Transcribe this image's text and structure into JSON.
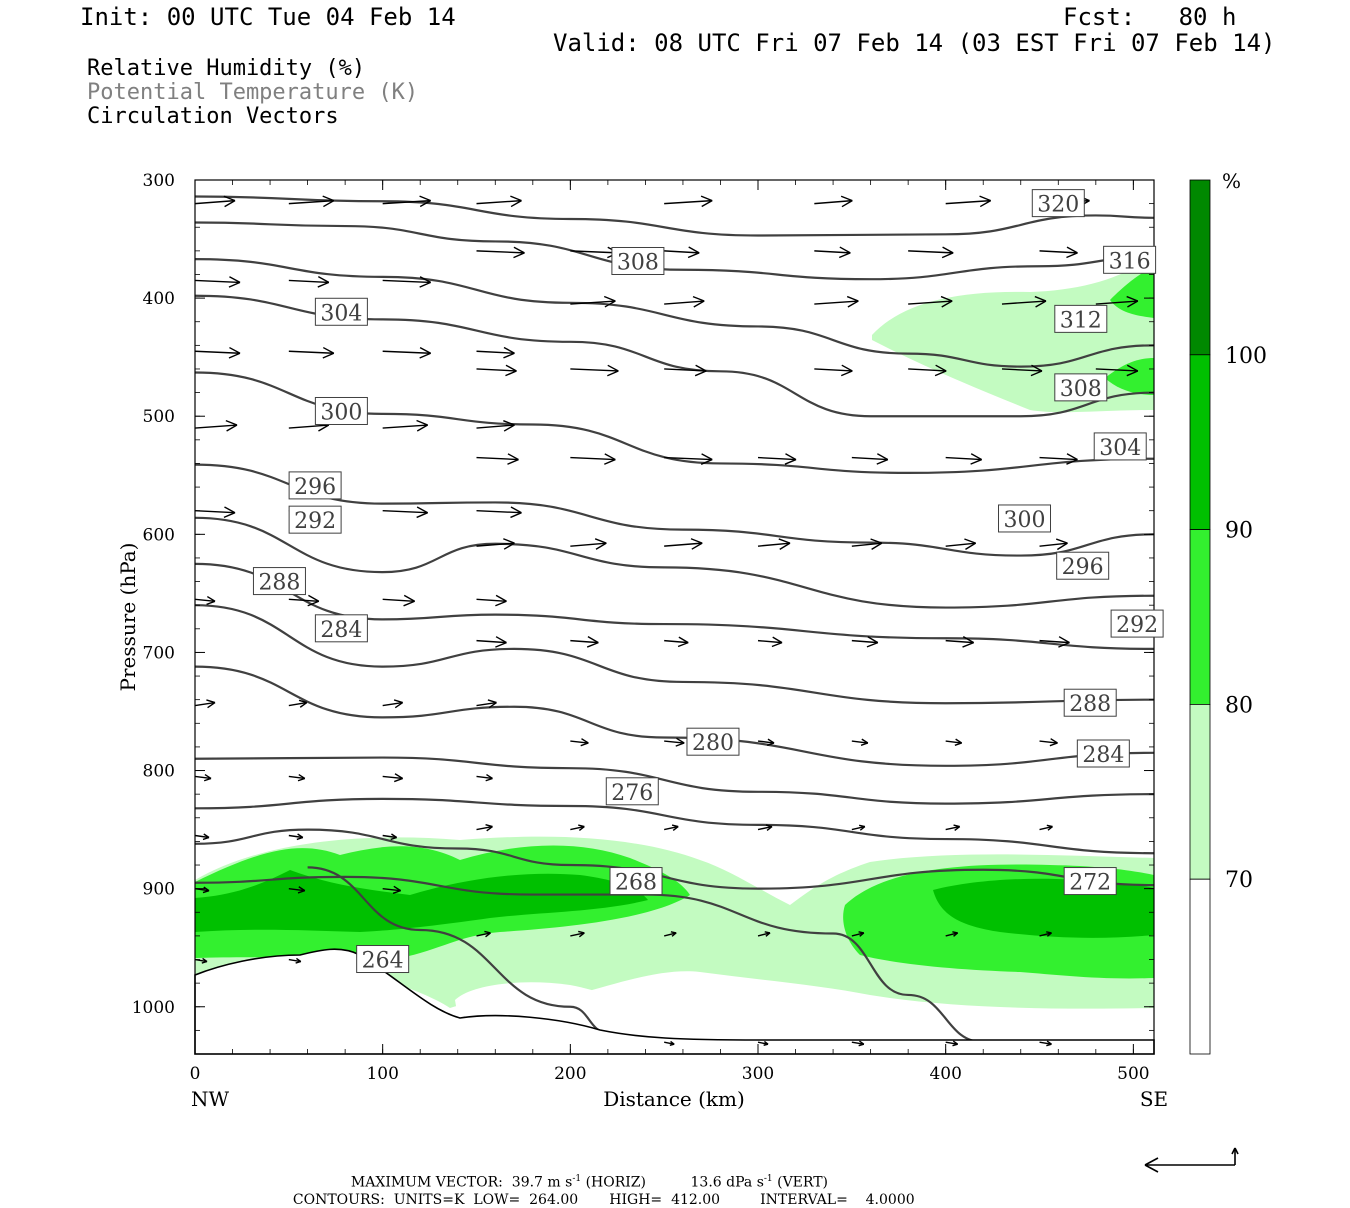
{
  "header": {
    "init": "Init: 00 UTC Tue 04 Feb 14",
    "fcst": "Fcst:   80 h",
    "valid": "Valid: 08 UTC Fri 07 Feb 14 (03 EST Fri 07 Feb 14)",
    "fields": [
      "Relative Humidity (%)",
      "Potential Temperature (K)",
      "Circulation Vectors"
    ]
  },
  "chart_data": {
    "type": "cross-section",
    "xlabel": "Distance (km)",
    "ylabel": "Pressure (hPa)",
    "x_ticks": [
      "0",
      "100",
      "200",
      "300",
      "400",
      "500"
    ],
    "y_ticks": [
      "300",
      "400",
      "500",
      "600",
      "700",
      "800",
      "900",
      "1000"
    ],
    "xlim": [
      0,
      511
    ],
    "ylim": [
      1040,
      300
    ],
    "left_endpoint": "NW",
    "right_endpoint": "SE",
    "colorbar": {
      "unit": "%",
      "levels": [
        "70",
        "80",
        "90",
        "100"
      ],
      "colors": [
        "#ffffff",
        "#c3fbc1",
        "#33f02f",
        "#00c000",
        "#008800"
      ]
    },
    "theta_labels": [
      "320",
      "316",
      "312",
      "308",
      "308",
      "304",
      "304",
      "300",
      "300",
      "296",
      "296",
      "292",
      "292",
      "288",
      "288",
      "284",
      "284",
      "280",
      "276",
      "272",
      "268",
      "264"
    ],
    "theta_contours": [
      {
        "label": "320",
        "points": [
          [
            0,
            314
          ],
          [
            100,
            318
          ],
          [
            200,
            333
          ],
          [
            300,
            347
          ],
          [
            400,
            346
          ],
          [
            480,
            330
          ],
          [
            511,
            332
          ]
        ]
      },
      {
        "label": "316",
        "points": [
          [
            0,
            336
          ],
          [
            80,
            339
          ],
          [
            160,
            352
          ],
          [
            260,
            376
          ],
          [
            360,
            384
          ],
          [
            450,
            373
          ],
          [
            511,
            365
          ]
        ]
      },
      {
        "label": "312",
        "points": [
          [
            0,
            367
          ],
          [
            100,
            382
          ],
          [
            200,
            404
          ],
          [
            300,
            424
          ],
          [
            380,
            447
          ],
          [
            440,
            458
          ],
          [
            511,
            440
          ]
        ]
      },
      {
        "label": "308",
        "points": [
          [
            0,
            398
          ],
          [
            100,
            418
          ],
          [
            200,
            437
          ],
          [
            280,
            462
          ],
          [
            360,
            500
          ],
          [
            440,
            500
          ],
          [
            511,
            480
          ]
        ]
      },
      {
        "label": "304",
        "points": [
          [
            0,
            463
          ],
          [
            100,
            498
          ],
          [
            180,
            507
          ],
          [
            280,
            540
          ],
          [
            380,
            548
          ],
          [
            511,
            536
          ]
        ]
      },
      {
        "label": "300",
        "points": [
          [
            0,
            541
          ],
          [
            100,
            574
          ],
          [
            160,
            573
          ],
          [
            260,
            596
          ],
          [
            360,
            607
          ],
          [
            440,
            618
          ],
          [
            511,
            600
          ]
        ]
      },
      {
        "label": "296",
        "points": [
          [
            0,
            586
          ],
          [
            100,
            632
          ],
          [
            160,
            608
          ],
          [
            250,
            628
          ],
          [
            400,
            662
          ],
          [
            511,
            652
          ]
        ]
      },
      {
        "label": "292",
        "points": [
          [
            0,
            625
          ],
          [
            100,
            672
          ],
          [
            160,
            668
          ],
          [
            250,
            676
          ],
          [
            400,
            688
          ],
          [
            511,
            697
          ]
        ]
      },
      {
        "label": "288",
        "points": [
          [
            0,
            660
          ],
          [
            100,
            712
          ],
          [
            170,
            697
          ],
          [
            260,
            725
          ],
          [
            400,
            743
          ],
          [
            511,
            740
          ]
        ]
      },
      {
        "label": "284",
        "points": [
          [
            0,
            712
          ],
          [
            100,
            755
          ],
          [
            170,
            746
          ],
          [
            250,
            772
          ],
          [
            400,
            796
          ],
          [
            511,
            785
          ]
        ]
      },
      {
        "label": "280",
        "points": [
          [
            0,
            790
          ],
          [
            100,
            789
          ],
          [
            200,
            798
          ],
          [
            300,
            818
          ],
          [
            400,
            828
          ],
          [
            511,
            820
          ]
        ]
      },
      {
        "label": "276",
        "points": [
          [
            0,
            832
          ],
          [
            100,
            824
          ],
          [
            200,
            830
          ],
          [
            300,
            846
          ],
          [
            400,
            858
          ],
          [
            511,
            870
          ]
        ]
      },
      {
        "label": "272",
        "points": [
          [
            0,
            862
          ],
          [
            60,
            850
          ],
          [
            140,
            866
          ],
          [
            200,
            880
          ],
          [
            300,
            900
          ],
          [
            420,
            884
          ],
          [
            511,
            897
          ]
        ]
      },
      {
        "label": "268",
        "points": [
          [
            0,
            895
          ],
          [
            80,
            890
          ],
          [
            180,
            905
          ],
          [
            240,
            905
          ],
          [
            340,
            938
          ],
          [
            380,
            990
          ],
          [
            420,
            1030
          ]
        ]
      },
      {
        "label": "264",
        "points": [
          [
            60,
            882
          ],
          [
            120,
            935
          ],
          [
            200,
            1000
          ],
          [
            220,
            1022
          ]
        ]
      }
    ],
    "vectors": {
      "max_vector": "39.7",
      "horiz_units": "m s",
      "vert_value": "13.6",
      "vert_units": "dPa s",
      "exponent": "-1",
      "horiz_suffix": "(HORIZ)",
      "vert_suffix": "(VERT)",
      "max_label": "MAXIMUM VECTOR:"
    },
    "contours_note": {
      "label": "CONTOURS:",
      "units": "UNITS=K",
      "low_label": "LOW=",
      "low": "264.00",
      "high_label": "HIGH=",
      "high": "412.00",
      "interval_label": "INTERVAL=",
      "interval": "4.0000"
    },
    "colors": {
      "contour": "#404040",
      "frame": "#000000"
    }
  }
}
